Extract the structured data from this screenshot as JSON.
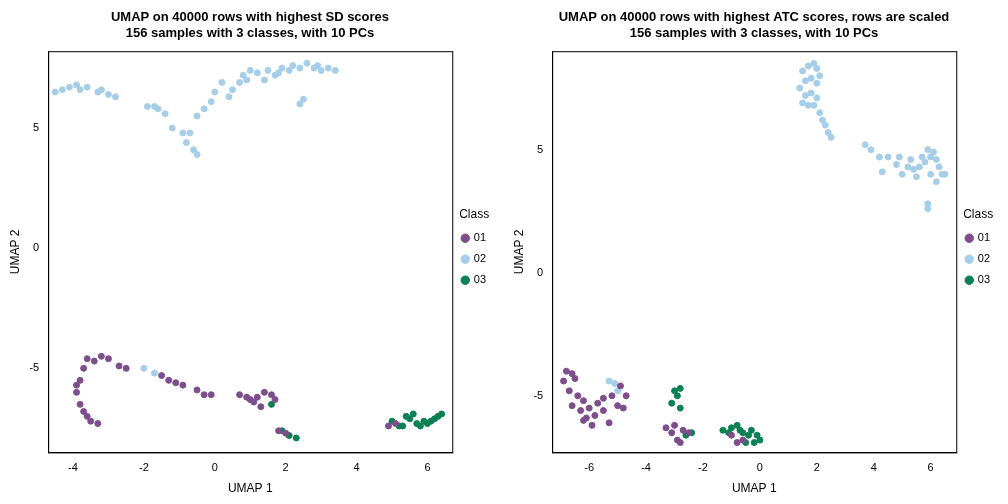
{
  "chart_data": [
    {
      "type": "scatter",
      "title": [
        "UMAP on 40000 rows with highest SD scores",
        "156 samples with 3 classes, with 10 PCs"
      ],
      "x_label": "UMAP 1",
      "y_label": "UMAP 2",
      "legend_title": "Class",
      "legend": "right",
      "xlim": [
        -4.7,
        6.7
      ],
      "xticks": [
        -4,
        -2,
        0,
        2,
        4,
        6
      ],
      "ylim": [
        -8.5,
        8.2
      ],
      "yticks": [
        -5,
        0,
        5
      ],
      "grid": false,
      "marker": "circle",
      "series": [
        {
          "name": "01",
          "color": "#7E4E8C",
          "x": [
            -3.6,
            -3.4,
            -3.2,
            -3.0,
            -3.7,
            -3.8,
            -3.9,
            -3.8,
            -3.7,
            -3.6,
            -3.5,
            -3.3,
            -3.9,
            -2.7,
            -2.5,
            -1.5,
            -1.3,
            -1.1,
            -0.9,
            -0.5,
            -0.3,
            -0.1,
            0.7,
            0.9,
            1.1,
            1.2,
            1.4,
            1.6,
            1.7,
            1.3,
            1.8,
            2.0,
            4.9,
            5.1,
            1.0
          ],
          "y": [
            -4.6,
            -4.7,
            -4.5,
            -4.6,
            -5.0,
            -5.5,
            -6.0,
            -6.5,
            -6.8,
            -7.0,
            -7.2,
            -7.3,
            -5.7,
            -4.9,
            -5.0,
            -5.3,
            -5.5,
            -5.6,
            -5.7,
            -5.9,
            -6.1,
            -6.1,
            -6.1,
            -6.2,
            -6.4,
            -6.2,
            -6.0,
            -6.1,
            -6.3,
            -6.6,
            -7.6,
            -7.7,
            -7.4,
            -7.3,
            -6.3
          ]
        },
        {
          "name": "02",
          "color": "#A6CEE8",
          "x": [
            -4.5,
            -4.3,
            -4.1,
            -3.9,
            -3.8,
            -3.6,
            -3.3,
            -3.2,
            -3.0,
            -2.8,
            -1.9,
            -1.7,
            -1.6,
            -1.4,
            -1.2,
            -0.9,
            -0.8,
            -0.7,
            -0.6,
            -0.5,
            -0.5,
            -0.3,
            -0.1,
            0.0,
            0.2,
            0.4,
            0.5,
            0.7,
            0.8,
            0.9,
            1.0,
            1.2,
            1.4,
            1.5,
            1.7,
            1.8,
            1.9,
            2.1,
            2.2,
            2.4,
            2.4,
            2.5,
            2.6,
            2.8,
            2.9,
            3.0,
            3.2,
            3.4,
            -2.0,
            -1.7
          ],
          "y": [
            6.5,
            6.6,
            6.7,
            6.8,
            6.6,
            6.7,
            6.5,
            6.6,
            6.4,
            6.3,
            5.9,
            5.9,
            5.8,
            5.6,
            5.0,
            4.8,
            4.4,
            4.8,
            4.1,
            3.9,
            5.5,
            5.8,
            6.1,
            6.5,
            6.9,
            6.3,
            6.6,
            6.9,
            7.2,
            7.0,
            7.4,
            7.3,
            7.0,
            7.4,
            7.2,
            7.3,
            7.5,
            7.4,
            7.6,
            7.5,
            6.0,
            6.2,
            7.7,
            7.5,
            7.6,
            7.4,
            7.5,
            7.4,
            -5.0,
            -5.2
          ]
        },
        {
          "name": "03",
          "color": "#0B8153",
          "x": [
            1.6,
            1.9,
            2.1,
            2.3,
            5.0,
            5.2,
            5.4,
            5.5,
            5.6,
            5.7,
            5.8,
            6.0,
            6.1,
            6.2,
            6.3,
            6.4,
            5.3,
            5.9
          ],
          "y": [
            -6.5,
            -7.6,
            -7.8,
            -7.9,
            -7.2,
            -7.4,
            -7.0,
            -7.1,
            -6.9,
            -7.3,
            -7.4,
            -7.3,
            -7.2,
            -7.1,
            -7.0,
            -6.9,
            -7.4,
            -7.2
          ]
        }
      ]
    },
    {
      "type": "scatter",
      "title": [
        "UMAP on 40000 rows with highest ATC scores, rows are scaled",
        "156 samples with 3 classes, with 10 PCs"
      ],
      "x_label": "UMAP 1",
      "y_label": "UMAP 2",
      "legend_title": "Class",
      "legend": "right",
      "xlim": [
        -7.3,
        6.9
      ],
      "xticks": [
        -6,
        -4,
        -2,
        0,
        2,
        4,
        6
      ],
      "ylim": [
        -7.3,
        9.0
      ],
      "yticks": [
        -5,
        0,
        5
      ],
      "grid": false,
      "marker": "circle",
      "series": [
        {
          "name": "01",
          "color": "#7E4E8C",
          "x": [
            -6.8,
            -6.6,
            -6.5,
            -6.9,
            -6.7,
            -6.4,
            -6.2,
            -6.6,
            -6.3,
            -6.0,
            -6.1,
            -5.9,
            -6.2,
            -5.8,
            -5.5,
            -5.7,
            -5.2,
            -5.5,
            -5.0,
            -4.8,
            -4.7,
            -4.9,
            -5.3,
            -3.3,
            -3.1,
            -2.9,
            -3.0,
            -2.7,
            -2.5,
            -2.8,
            -1.0,
            -0.8,
            -0.6
          ],
          "y": [
            -4.0,
            -4.1,
            -4.3,
            -4.4,
            -4.8,
            -5.0,
            -5.2,
            -5.4,
            -5.6,
            -5.5,
            -5.9,
            -6.2,
            -6.0,
            -5.8,
            -5.1,
            -5.3,
            -5.0,
            -5.6,
            -5.4,
            -5.5,
            -5.0,
            -4.6,
            -6.1,
            -6.3,
            -6.5,
            -6.8,
            -6.2,
            -6.4,
            -6.5,
            -6.9,
            -6.6,
            -6.9,
            -6.8
          ]
        },
        {
          "name": "02",
          "color": "#A6CEE8",
          "x": [
            1.5,
            1.7,
            1.9,
            2.0,
            1.6,
            1.8,
            2.0,
            2.1,
            1.4,
            1.6,
            1.8,
            2.0,
            1.5,
            1.7,
            1.9,
            2.1,
            2.2,
            2.3,
            2.4,
            2.5,
            3.7,
            3.9,
            4.2,
            4.5,
            4.3,
            4.8,
            4.9,
            5.0,
            5.2,
            5.3,
            5.4,
            5.5,
            5.6,
            5.7,
            5.8,
            5.9,
            6.0,
            6.1,
            6.2,
            6.3,
            6.4,
            6.2,
            6.0,
            5.9,
            5.9,
            6.5,
            -5.3,
            -5.1,
            -5.0
          ],
          "y": [
            8.2,
            8.4,
            8.5,
            8.3,
            7.8,
            7.9,
            7.7,
            8.0,
            7.5,
            7.2,
            7.3,
            7.1,
            6.9,
            6.8,
            6.8,
            6.5,
            6.2,
            6.0,
            5.7,
            5.5,
            5.2,
            5.0,
            4.7,
            4.7,
            4.1,
            4.4,
            4.7,
            4.0,
            4.3,
            4.6,
            4.2,
            3.9,
            4.3,
            4.7,
            4.5,
            5.0,
            4.7,
            4.9,
            4.6,
            4.3,
            4.0,
            3.7,
            4.0,
            2.8,
            2.6,
            4.0,
            -4.4,
            -4.5,
            -4.8
          ]
        },
        {
          "name": "03",
          "color": "#0B8153",
          "x": [
            -3.0,
            -2.8,
            -2.9,
            -3.1,
            -2.8,
            -2.4,
            -1.3,
            -1.0,
            -0.8,
            -0.6,
            -0.4,
            -0.3,
            -0.1,
            0.0,
            -0.2,
            -0.5,
            -1.1,
            -0.7,
            -2.6
          ],
          "y": [
            -4.8,
            -4.7,
            -5.0,
            -5.3,
            -5.5,
            -6.5,
            -6.4,
            -6.3,
            -6.2,
            -6.5,
            -6.6,
            -6.4,
            -6.6,
            -6.8,
            -6.9,
            -6.9,
            -6.5,
            -6.4,
            -6.6
          ]
        }
      ]
    }
  ]
}
